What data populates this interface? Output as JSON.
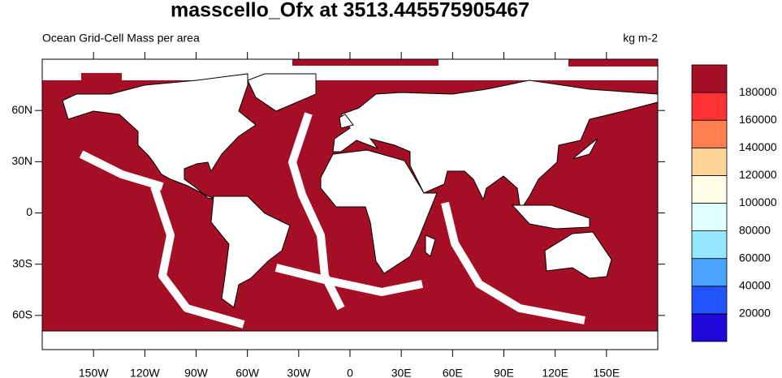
{
  "title": "masscello_Ofx at 3513.445575905467",
  "subtitle": "Ocean Grid-Cell Mass per area",
  "units": "kg m-2",
  "map": {
    "xlim": [
      -180,
      180
    ],
    "ylim": [
      -80,
      90
    ],
    "xticks": [
      {
        "value": -150,
        "label": "150W"
      },
      {
        "value": -120,
        "label": "120W"
      },
      {
        "value": -90,
        "label": "90W"
      },
      {
        "value": -60,
        "label": "60W"
      },
      {
        "value": -30,
        "label": "30W"
      },
      0,
      {
        "value": 30,
        "label": "30E"
      },
      {
        "value": 60,
        "label": "60E"
      },
      {
        "value": 90,
        "label": "90E"
      },
      {
        "value": 120,
        "label": "120E"
      },
      {
        "value": 150,
        "label": "150E"
      }
    ],
    "yticks": [
      {
        "value": -60,
        "label": "60S"
      },
      {
        "value": -30,
        "label": "30S"
      },
      0,
      {
        "value": 30,
        "label": "30N"
      },
      {
        "value": 60,
        "label": "60N"
      }
    ]
  },
  "colorbar": {
    "levels": [
      20000,
      40000,
      60000,
      80000,
      100000,
      120000,
      140000,
      160000,
      180000
    ],
    "colors": [
      "#2008d8",
      "#2255ff",
      "#4aa3ff",
      "#96e6ff",
      "#e0ffff",
      "#fffde6",
      "#ffd699",
      "#ff7f50",
      "#ff3333",
      "#a50f26"
    ]
  }
}
